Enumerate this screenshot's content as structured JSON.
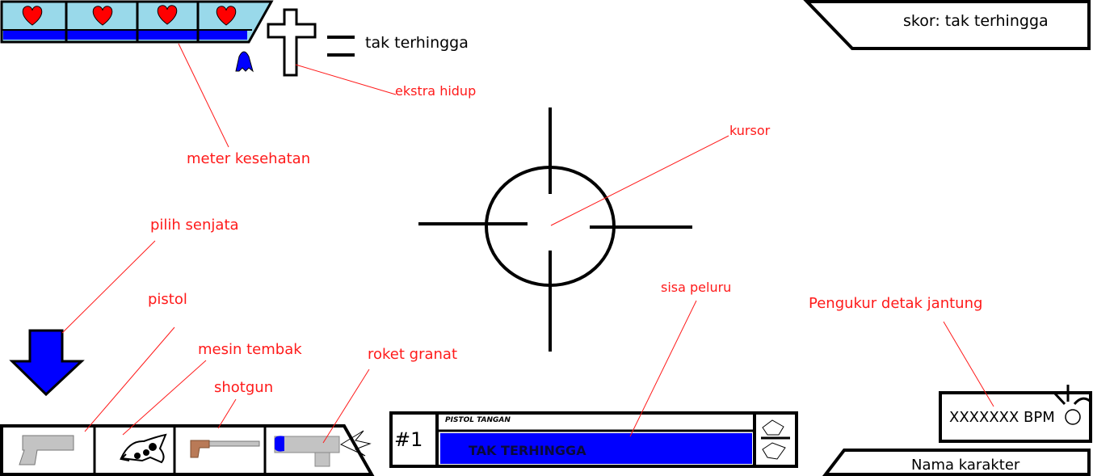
{
  "hud": {
    "lives": {
      "count": "tak terhingga"
    },
    "score": {
      "text": "skor: tak terhingga"
    },
    "health": {
      "hearts": 4
    },
    "weapon": {
      "slot": "#1",
      "name": "PISTOL TANGAN",
      "ammo": "TAK TERHINGGA"
    },
    "heart_rate": {
      "text": "XXXXXXX BPM"
    },
    "character": {
      "name": "Nama karakter"
    },
    "weapons": [
      {
        "id": "pistol",
        "icon": "pistol-icon"
      },
      {
        "id": "machine-gun",
        "icon": "machine-gun-icon"
      },
      {
        "id": "shotgun",
        "icon": "shotgun-icon"
      },
      {
        "id": "rocket",
        "icon": "rocket-launcher-icon"
      }
    ]
  },
  "annotations": {
    "health": "meter kesehatan",
    "extra_life": "ekstra hidup",
    "cursor": "kursor",
    "select_weapon": "pilih senjata",
    "pistol": "pistol",
    "machine_gun": "mesin tembak",
    "shotgun": "shotgun",
    "rocket": "roket granat",
    "ammo": "sisa peluru",
    "heart_rate": "Pengukur detak jantung"
  },
  "colors": {
    "heart": "#ff0000",
    "panel": "#99d9ea",
    "blue": "#0000ff",
    "annotation": "#ff1a1a"
  }
}
